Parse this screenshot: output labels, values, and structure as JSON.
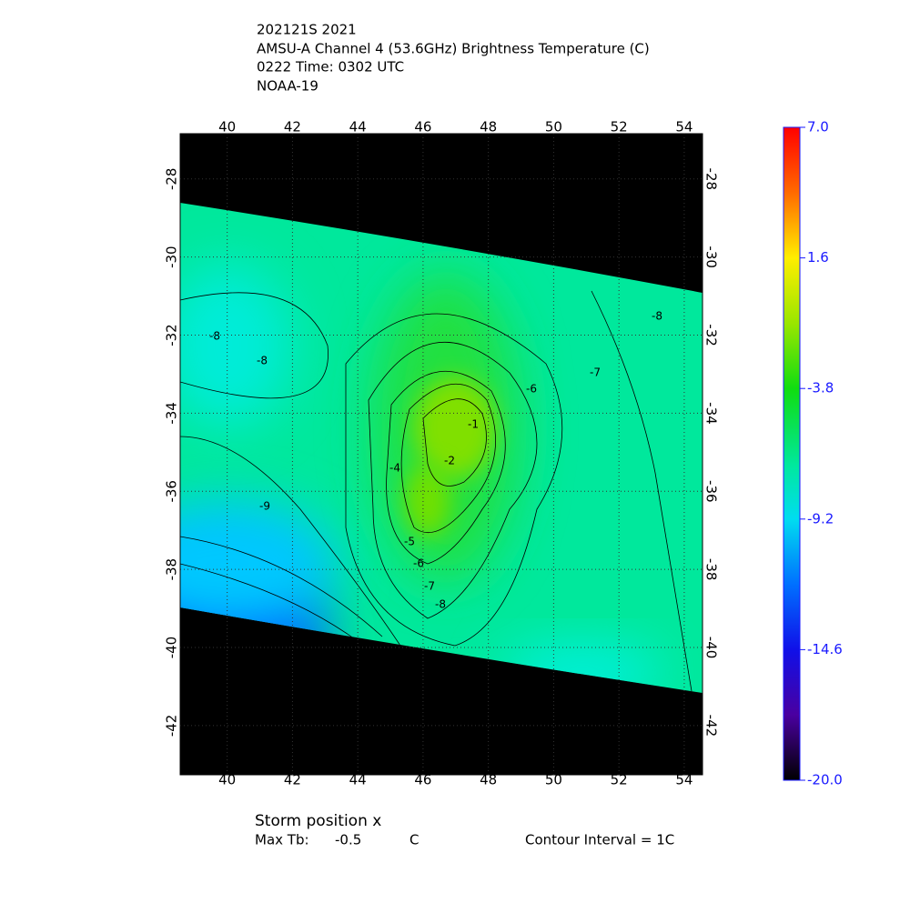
{
  "header": {
    "lines": [
      "202121S 2021",
      "AMSU-A Channel 4 (53.6GHz) Brightness Temperature (C)",
      "0222 Time: 0302 UTC",
      "NOAA-19"
    ]
  },
  "map": {
    "lonlim": [
      38.56,
      54.56
    ],
    "latlim": [
      -26.84,
      -43.26
    ],
    "lonticks": [
      40,
      42,
      44,
      46,
      48,
      50,
      52,
      54
    ],
    "latticks": [
      -28,
      -30,
      -32,
      -34,
      -36,
      -38,
      -40,
      -42
    ],
    "contour_labels": [
      -8,
      -8,
      -9,
      -8,
      -7,
      -6,
      -4,
      -5,
      -6,
      -7,
      -8,
      -1,
      -2
    ]
  },
  "colorbar": {
    "lim": [
      -20,
      7
    ],
    "ticks": [
      {
        "value": 7,
        "label": "7.0"
      },
      1.6,
      -3.8,
      -9.2,
      -14.6,
      {
        "value": -20,
        "label": "-20.0"
      }
    ]
  },
  "footer": {
    "storm": "Storm position x",
    "max_label": "Max Tb:",
    "max_value": -0.5,
    "max_unit": "C",
    "interval": "Contour Interval = 1C"
  }
}
